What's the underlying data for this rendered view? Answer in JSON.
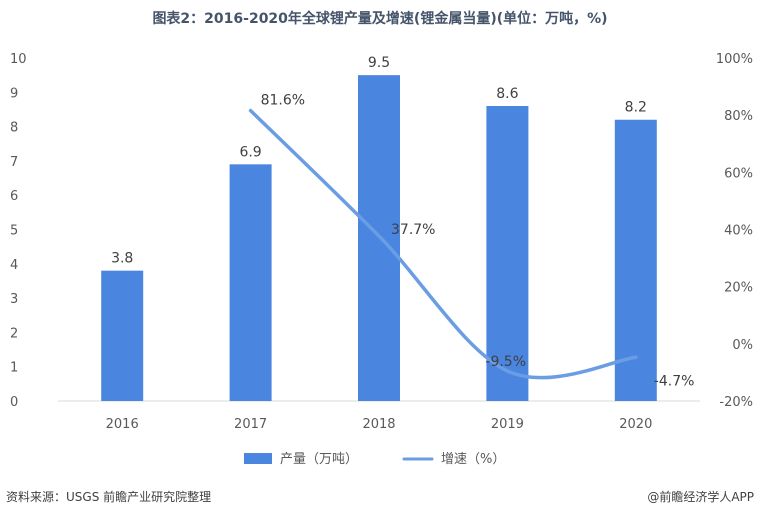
{
  "chart_data": {
    "type": "bar",
    "title": "图表2：2016-2020年全球锂产量及增速(锂金属当量)(单位：万吨，%)",
    "categories": [
      "2016",
      "2017",
      "2018",
      "2019",
      "2020"
    ],
    "series": [
      {
        "name": "产量（万吨）",
        "type": "bar",
        "axis": "left",
        "values": [
          3.8,
          6.9,
          9.5,
          8.6,
          8.2
        ],
        "labels": [
          "3.8",
          "6.9",
          "9.5",
          "8.6",
          "8.2"
        ],
        "color": "#4a86e0"
      },
      {
        "name": "增速（%）",
        "type": "line",
        "axis": "right",
        "smooth": true,
        "values": [
          null,
          81.6,
          37.7,
          -9.5,
          -4.7
        ],
        "labels": [
          "",
          "81.6%",
          "37.7%",
          "-9.5%",
          "-4.7%"
        ],
        "color": "#6a9de3"
      }
    ],
    "y_left": {
      "range": [
        0,
        10
      ],
      "ticks": [
        0,
        1,
        2,
        3,
        4,
        5,
        6,
        7,
        8,
        9,
        10
      ],
      "tick_labels": [
        "0",
        "1",
        "2",
        "3",
        "4",
        "5",
        "6",
        "7",
        "8",
        "9",
        "10"
      ]
    },
    "y_right": {
      "range": [
        -20,
        100
      ],
      "ticks": [
        -20,
        0,
        20,
        40,
        60,
        80,
        100
      ],
      "tick_labels": [
        "-20%",
        "0%",
        "20%",
        "40%",
        "60%",
        "80%",
        "100%"
      ]
    },
    "grid": false,
    "legend_position": "bottom"
  },
  "footer": {
    "source": "资料来源：USGS 前瞻产业研究院整理",
    "credit": "@前瞻经济学人APP"
  }
}
